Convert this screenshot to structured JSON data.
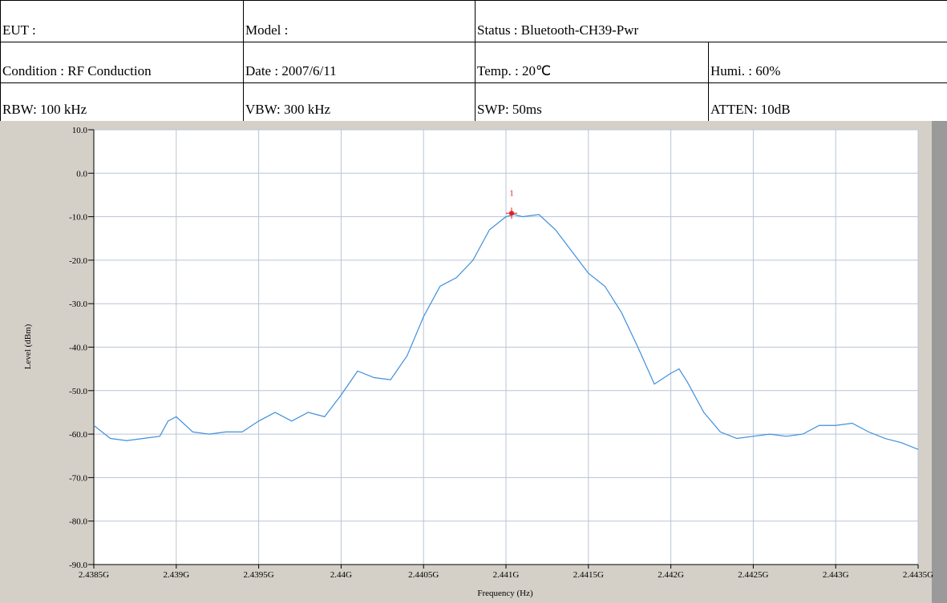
{
  "table": {
    "rows": [
      [
        "EUT :",
        "Model :",
        "Status : Bluetooth-CH39-Pwr"
      ],
      [
        "Condition : RF Conduction",
        "Date : 2007/6/11",
        "Temp. : 20℃",
        "Humi. : 60%"
      ],
      [
        "RBW: 100 kHz",
        "VBW: 300 kHz",
        "SWP: 50ms",
        "ATTEN: 10dB"
      ]
    ]
  },
  "chart_data": {
    "type": "line",
    "xlabel": "Frequency (Hz)",
    "ylabel": "Level (dBm)",
    "xlim": [
      2438500000,
      2443500000
    ],
    "xticks": [
      {
        "value": 2438500000,
        "label": "2.4385G"
      },
      {
        "value": 2439000000,
        "label": "2.439G"
      },
      {
        "value": 2439500000,
        "label": "2.4395G"
      },
      {
        "value": 2440000000,
        "label": "2.44G"
      },
      {
        "value": 2440500000,
        "label": "2.4405G"
      },
      {
        "value": 2441000000,
        "label": "2.441G"
      },
      {
        "value": 2441500000,
        "label": "2.4415G"
      },
      {
        "value": 2442000000,
        "label": "2.442G"
      },
      {
        "value": 2442500000,
        "label": "2.4425G"
      },
      {
        "value": 2443000000,
        "label": "2.443G"
      },
      {
        "value": 2443500000,
        "label": "2.4435G"
      }
    ],
    "ylim": [
      -90,
      10
    ],
    "yticks": [
      {
        "value": 10,
        "label": "10.0"
      },
      {
        "value": 0,
        "label": "0.0"
      },
      {
        "value": -10,
        "label": "-10.0"
      },
      {
        "value": -20,
        "label": "-20.0"
      },
      {
        "value": -30,
        "label": "-30.0"
      },
      {
        "value": -40,
        "label": "-40.0"
      },
      {
        "value": -50,
        "label": "-50.0"
      },
      {
        "value": -60,
        "label": "-60.0"
      },
      {
        "value": -70,
        "label": "-70.0"
      },
      {
        "value": -80,
        "label": "-80.0"
      },
      {
        "value": -90,
        "label": "-90.0"
      }
    ],
    "grid": true,
    "x": [
      2438500000,
      2438600000,
      2438700000,
      2438800000,
      2438900000,
      2438950000,
      2439000000,
      2439100000,
      2439200000,
      2439300000,
      2439400000,
      2439500000,
      2439600000,
      2439700000,
      2439800000,
      2439900000,
      2440000000,
      2440100000,
      2440200000,
      2440300000,
      2440400000,
      2440500000,
      2440600000,
      2440700000,
      2440800000,
      2440900000,
      2441000000,
      2441050000,
      2441100000,
      2441200000,
      2441300000,
      2441400000,
      2441500000,
      2441600000,
      2441700000,
      2441800000,
      2441900000,
      2442000000,
      2442050000,
      2442100000,
      2442200000,
      2442300000,
      2442400000,
      2442500000,
      2442600000,
      2442700000,
      2442800000,
      2442900000,
      2443000000,
      2443100000,
      2443200000,
      2443300000,
      2443400000,
      2443500000
    ],
    "series": [
      {
        "color": "#3f8fdc",
        "values": [
          -58,
          -61,
          -61.5,
          -61,
          -60.5,
          -57,
          -56,
          -59.5,
          -60,
          -59.5,
          -59.5,
          -57,
          -55,
          -57,
          -55,
          -56,
          -51,
          -45.5,
          -47,
          -47.5,
          -42,
          -33,
          -26,
          -24,
          -20,
          -13,
          -10,
          -9.5,
          -10,
          -9.5,
          -13,
          -18,
          -23,
          -26,
          -32,
          -40,
          -48.5,
          -46,
          -45,
          -48,
          -55,
          -59.5,
          -61,
          -60.5,
          -60,
          -60.5,
          -60,
          -58,
          -58,
          -57.5,
          -59.5,
          -61,
          -62,
          -63.5
        ]
      }
    ],
    "markers": [
      {
        "x": 2441034000,
        "y": -9.2,
        "label": "1",
        "color": "#e02020"
      }
    ]
  }
}
